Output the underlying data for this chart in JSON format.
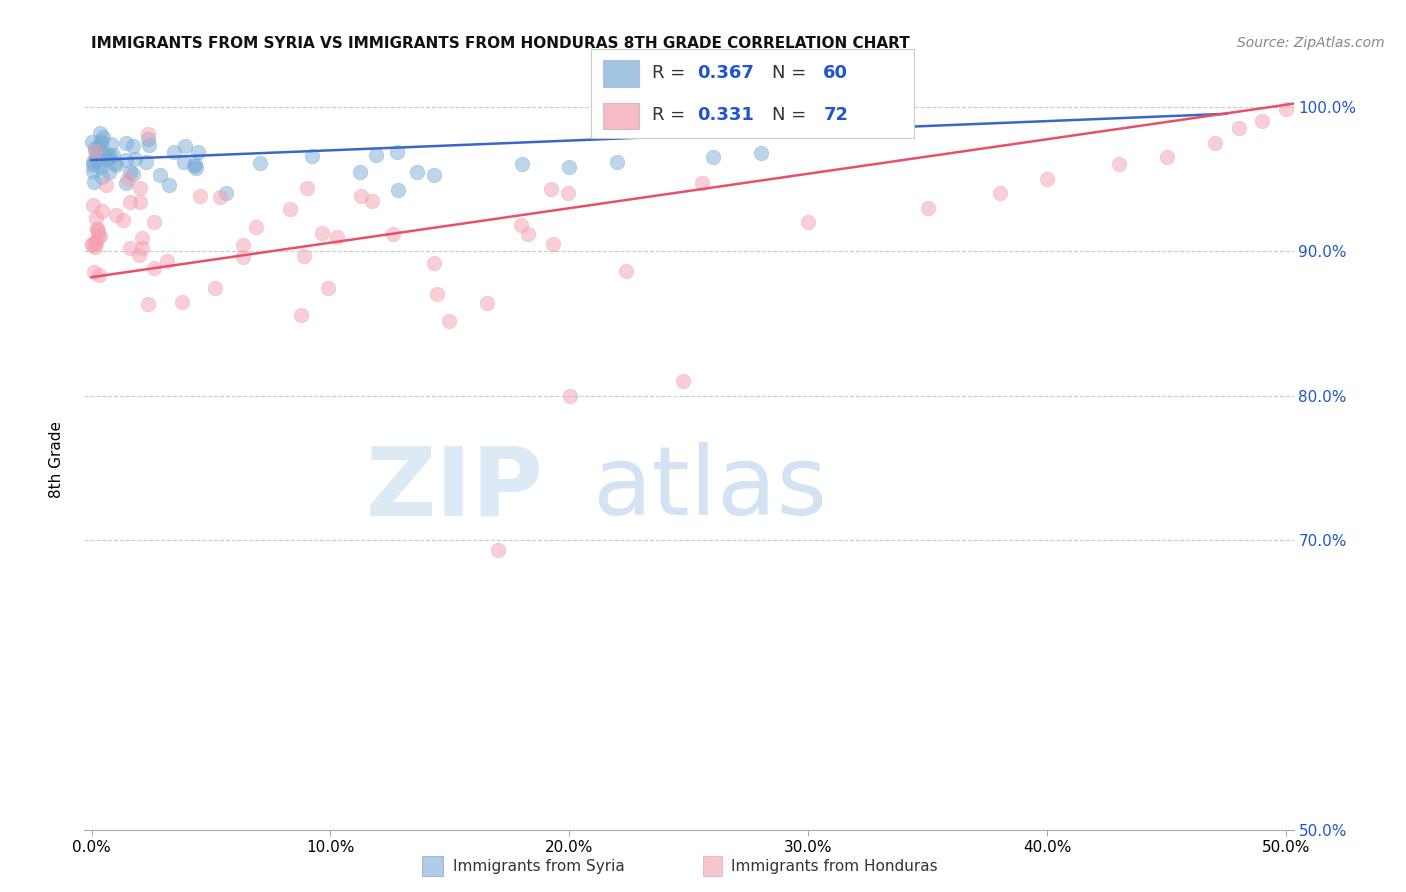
{
  "title": "IMMIGRANTS FROM SYRIA VS IMMIGRANTS FROM HONDURAS 8TH GRADE CORRELATION CHART",
  "source": "Source: ZipAtlas.com",
  "ylabel": "8th Grade",
  "xlim": [
    -0.003,
    0.503
  ],
  "ylim": [
    0.5,
    1.012
  ],
  "y_ticks": [
    0.5,
    0.7,
    0.8,
    0.9,
    1.0
  ],
  "y_tick_labels": [
    "50.0%",
    "70.0%",
    "80.0%",
    "90.0%",
    "100.0%"
  ],
  "x_ticks": [
    0.0,
    0.1,
    0.2,
    0.3,
    0.4,
    0.5
  ],
  "x_tick_labels": [
    "0.0%",
    "10.0%",
    "20.0%",
    "30.0%",
    "40.0%",
    "50.0%"
  ],
  "legend_syria_R": "0.367",
  "legend_syria_N": "60",
  "legend_honduras_R": "0.331",
  "legend_honduras_N": "72",
  "syria_color": "#7aacd6",
  "honduras_color": "#f4a0b0",
  "syria_line_color": "#3a66cc",
  "honduras_line_color": "#e8506a",
  "legend_text_color": "#2255cc",
  "background_color": "#ffffff",
  "syria_line_x": [
    0.0,
    0.475
  ],
  "syria_line_y": [
    0.963,
    0.995
  ],
  "honduras_line_x": [
    0.0,
    0.503
  ],
  "honduras_line_y": [
    0.882,
    1.002
  ],
  "title_fontsize": 11,
  "source_fontsize": 10,
  "tick_fontsize": 11,
  "ylabel_fontsize": 11
}
